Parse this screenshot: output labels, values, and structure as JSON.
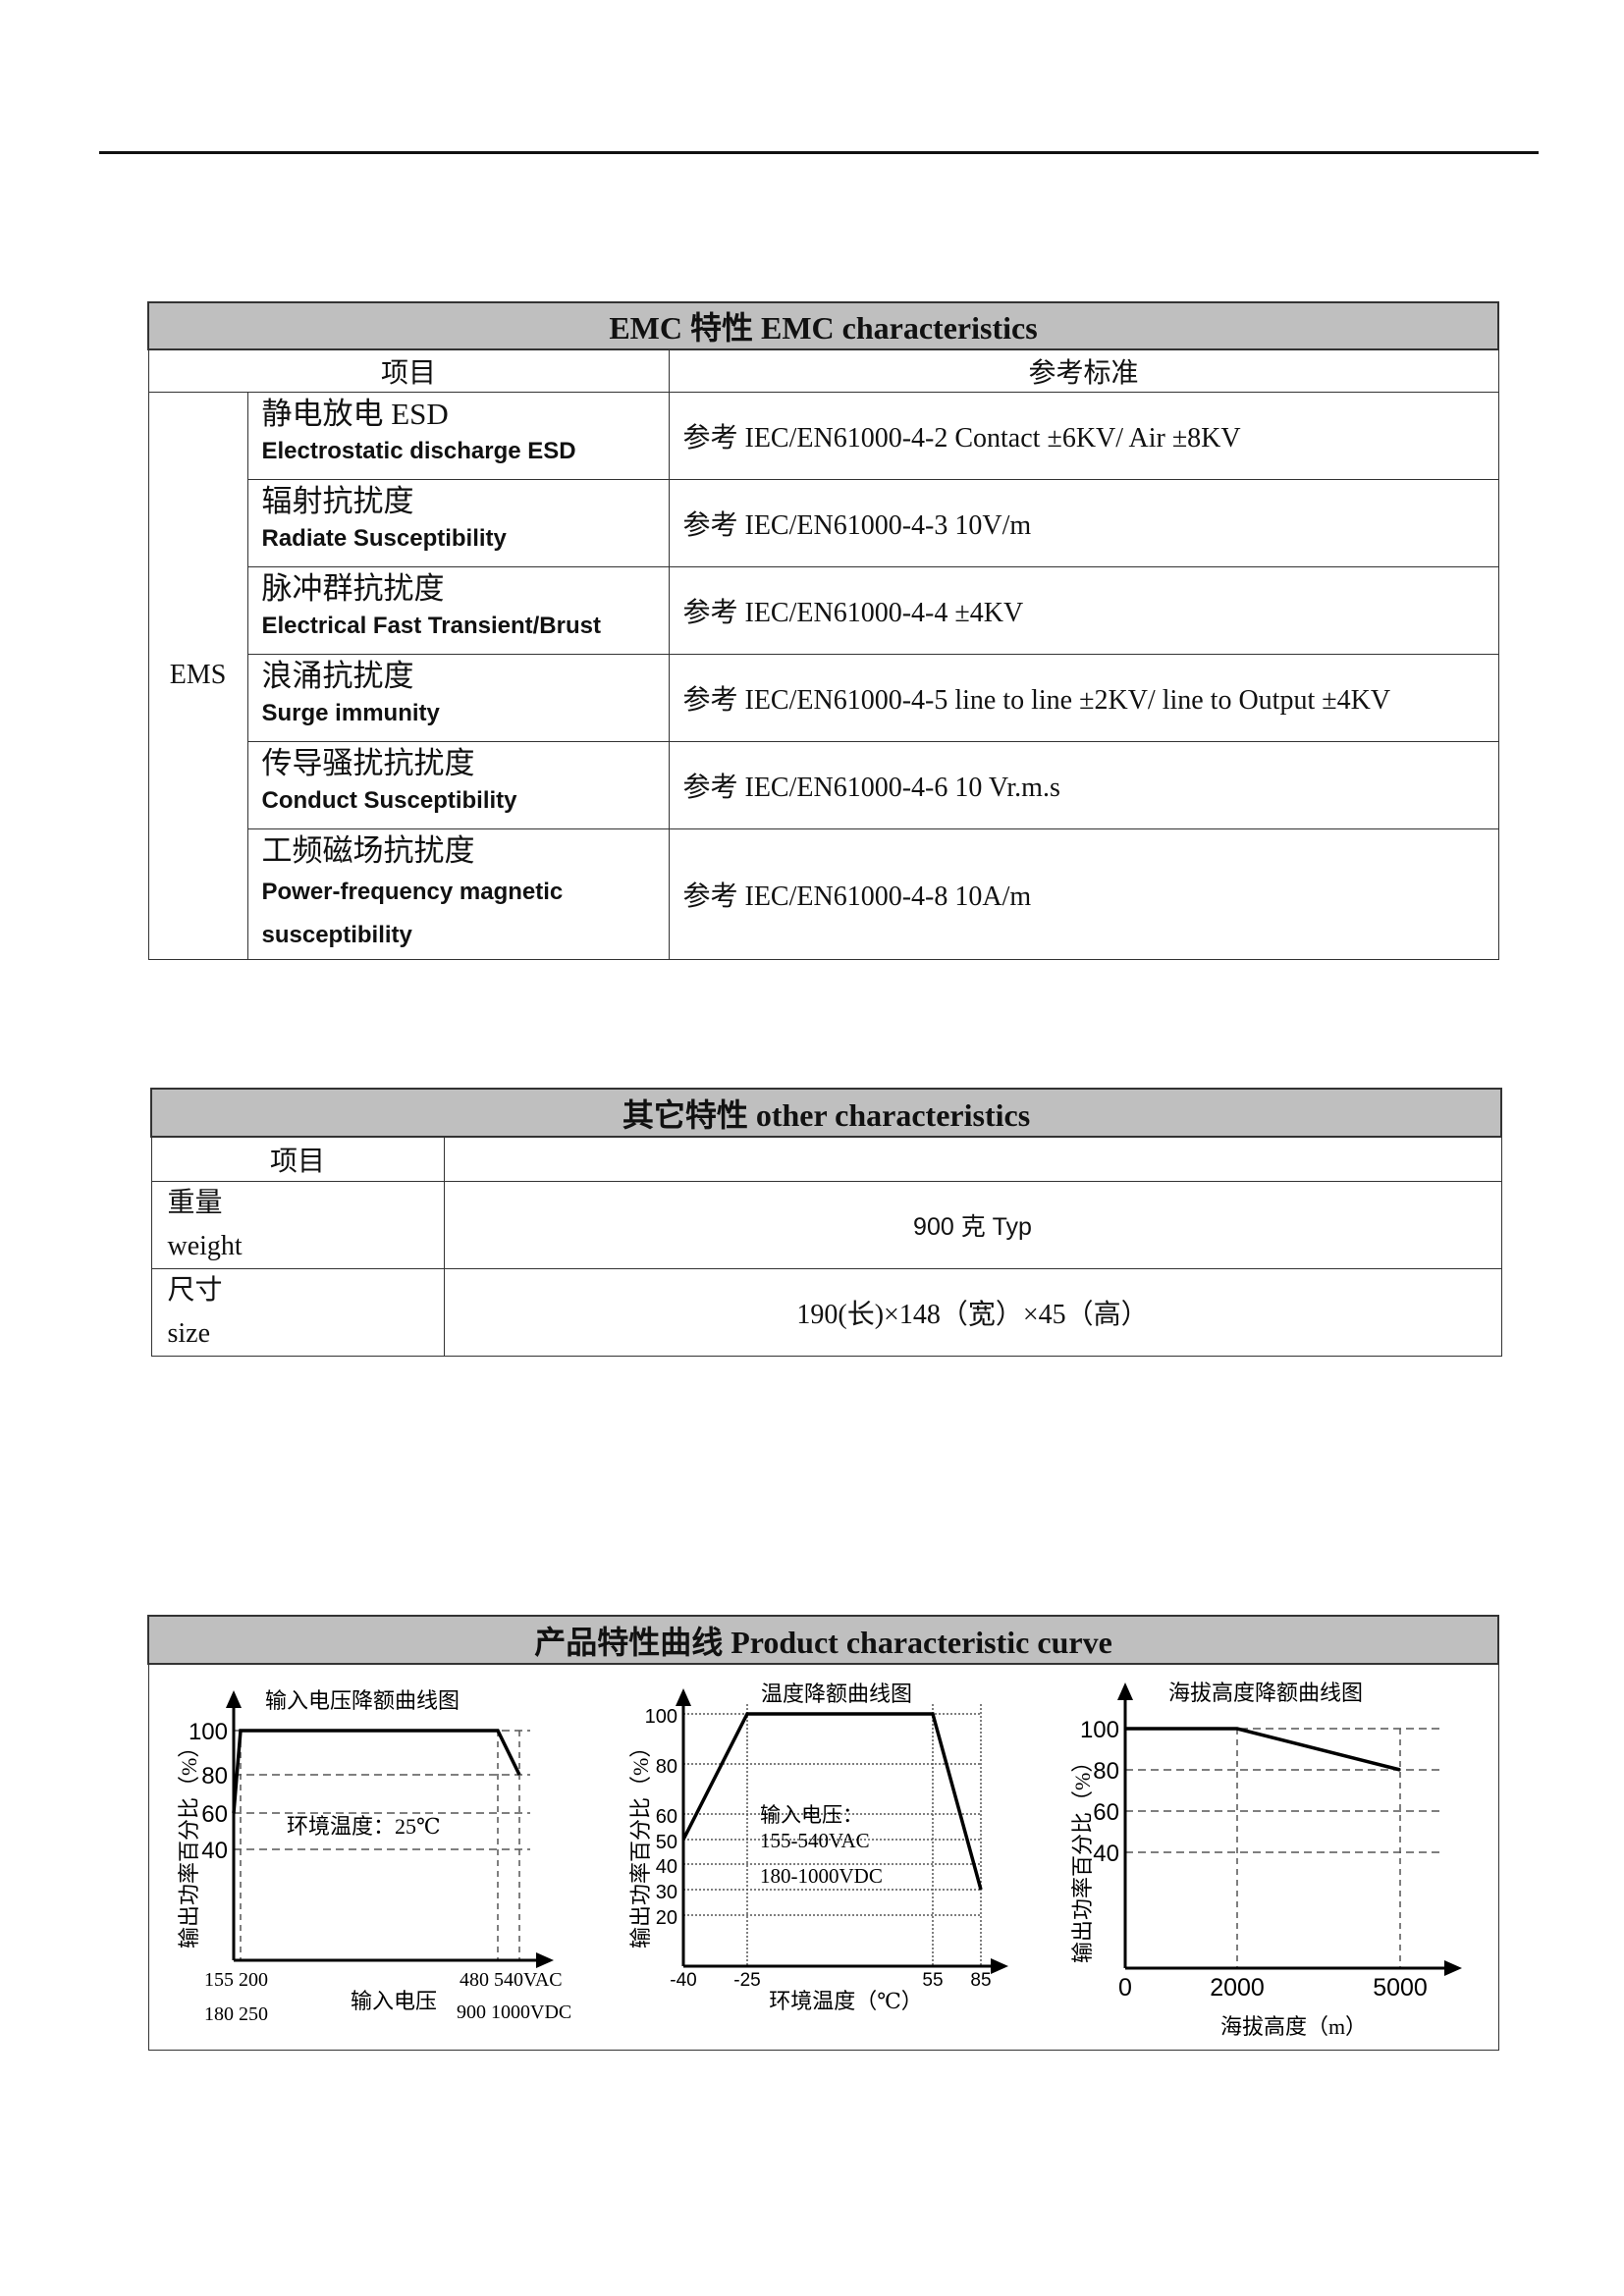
{
  "emc": {
    "title": "EMC 特性  EMC characteristics",
    "col_item": "项目",
    "col_std": "参考标准",
    "group": "EMS",
    "rows": [
      {
        "zh": "静电放电 ESD",
        "en": "Electrostatic discharge ESD",
        "std": "参考 IEC/EN61000-4-2 Contact  ±6KV/ Air  ±8KV"
      },
      {
        "zh": "辐射抗扰度",
        "en": "Radiate Susceptibility",
        "std": "参考 IEC/EN61000-4-3 10V/m"
      },
      {
        "zh": "脉冲群抗扰度",
        "en": "Electrical Fast Transient/Brust",
        "std": "参考 IEC/EN61000-4-4  ±4KV"
      },
      {
        "zh": "浪涌抗扰度",
        "en": "Surge immunity",
        "std": "参考 IEC/EN61000-4-5 line to line  ±2KV/ line to Output  ±4KV"
      },
      {
        "zh": "传导骚扰抗扰度",
        "en": "Conduct Susceptibility",
        "std": "参考 IEC/EN61000-4-6 10 Vr.m.s"
      },
      {
        "zh": "工频磁场抗扰度",
        "en": "Power-frequency magnetic susceptibility",
        "std": "参考 IEC/EN61000-4-8 10A/m"
      }
    ]
  },
  "other": {
    "title": "其它特性 other characteristics",
    "col_item": "项目",
    "rows": [
      {
        "zh": "重量",
        "en": "weight",
        "value": "900 克 Typ"
      },
      {
        "zh": "尺寸",
        "en": "size",
        "value": "190(长)×148（宽）×45（高）"
      }
    ]
  },
  "curves": {
    "title": "产品特性曲线 Product characteristic curve"
  },
  "chart_data": [
    {
      "type": "line",
      "title": "输入电压降额曲线图",
      "ylabel": "输出功率百分比（%）",
      "xlabel": "输入电压",
      "yticks": [
        100,
        80,
        60,
        40
      ],
      "xtick_rows": [
        "155 200",
        "180 250",
        "480 540VAC",
        "900 1000VDC"
      ],
      "annotation": "环境温度：25℃",
      "x": [
        155,
        200,
        480,
        540
      ],
      "y": [
        60,
        100,
        100,
        80
      ]
    },
    {
      "type": "line",
      "title": "温度降额曲线图",
      "ylabel": "输出功率百分比（%）",
      "xlabel": "环境温度（℃）",
      "yticks": [
        100,
        80,
        60,
        50,
        40,
        30,
        20
      ],
      "xticks": [
        -40,
        -25,
        55,
        85
      ],
      "annotation": [
        "输入电压：",
        "155-540VAC",
        "180-1000VDC"
      ],
      "x": [
        -40,
        -25,
        55,
        85
      ],
      "y": [
        50,
        100,
        100,
        30
      ]
    },
    {
      "type": "line",
      "title": "海拔高度降额曲线图",
      "ylabel": "输出功率百分比（%）",
      "xlabel": "海拔高度（m）",
      "yticks": [
        100,
        80,
        60,
        40
      ],
      "xticks": [
        0,
        2000,
        5000
      ],
      "x": [
        0,
        2000,
        5000
      ],
      "y": [
        100,
        100,
        80
      ]
    }
  ]
}
